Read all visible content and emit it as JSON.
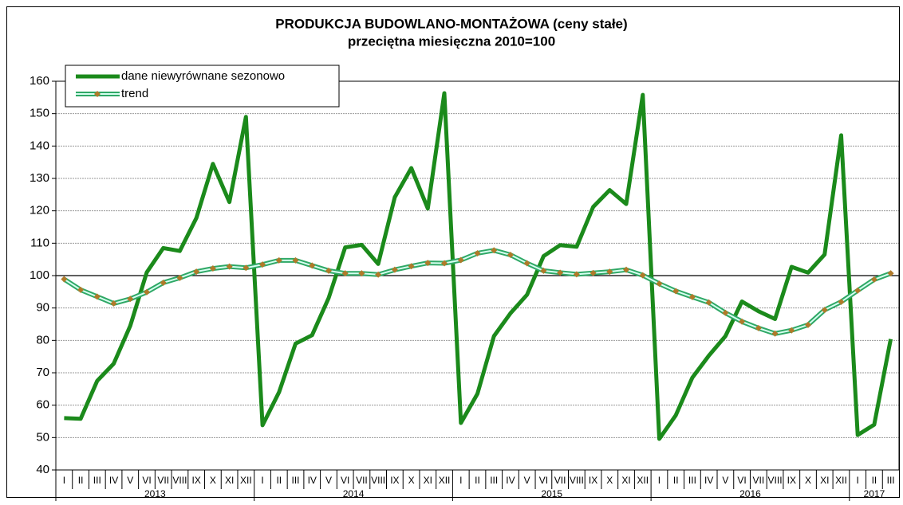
{
  "chart_data": {
    "type": "line",
    "title": "PRODUKCJA BUDOWLANO-MONTAŻOWA (ceny stałe)",
    "subtitle": "przeciętna miesięczna 2010=100",
    "categories": [
      "I",
      "II",
      "III",
      "IV",
      "V",
      "VI",
      "VII",
      "VIII",
      "IX",
      "X",
      "XI",
      "XII",
      "I",
      "II",
      "III",
      "IV",
      "V",
      "VI",
      "VII",
      "VIII",
      "IX",
      "X",
      "XI",
      "XII",
      "I",
      "II",
      "III",
      "IV",
      "V",
      "VI",
      "VII",
      "VIII",
      "IX",
      "X",
      "XI",
      "XII",
      "I",
      "II",
      "III",
      "IV",
      "V",
      "VI",
      "VII",
      "VIII",
      "IX",
      "X",
      "XI",
      "XII",
      "I",
      "II",
      "III"
    ],
    "category_years": [
      "2013",
      "2013",
      "2013",
      "2013",
      "2013",
      "2013",
      "2013",
      "2013",
      "2013",
      "2013",
      "2013",
      "2013",
      "2014",
      "2014",
      "2014",
      "2014",
      "2014",
      "2014",
      "2014",
      "2014",
      "2014",
      "2014",
      "2014",
      "2014",
      "2015",
      "2015",
      "2015",
      "2015",
      "2015",
      "2015",
      "2015",
      "2015",
      "2015",
      "2015",
      "2015",
      "2015",
      "2016",
      "2016",
      "2016",
      "2016",
      "2016",
      "2016",
      "2016",
      "2016",
      "2016",
      "2016",
      "2016",
      "2016",
      "2017",
      "2017",
      "2017"
    ],
    "series": [
      {
        "name": "dane niewyrównane sezonowo",
        "color": "#1b8a1b",
        "values": [
          56,
          55.8,
          67.5,
          72.8,
          84.5,
          101,
          108.5,
          107.6,
          117.8,
          134.5,
          122.7,
          149,
          53.8,
          64,
          79,
          81.6,
          93.1,
          108.7,
          109.5,
          103.6,
          124.2,
          133.2,
          120.7,
          156.3,
          54.5,
          63.5,
          81.3,
          88.4,
          94.1,
          106,
          109.4,
          108.9,
          121.2,
          126.4,
          122.1,
          155.8,
          49.6,
          56.9,
          68.5,
          75.3,
          81.3,
          92,
          89,
          86.6,
          102.7,
          100.9,
          106.5,
          143.3,
          50.8,
          54,
          80.4
        ]
      },
      {
        "name": "trend",
        "color": "#2fa866",
        "marker_color": "#b07a2a",
        "values": [
          98.9,
          95.6,
          93.5,
          91.4,
          92.8,
          94.9,
          97.8,
          99.3,
          101.2,
          102.2,
          102.8,
          102.4,
          103.4,
          104.7,
          104.7,
          103.1,
          101.5,
          100.7,
          100.7,
          100.3,
          101.8,
          102.9,
          103.9,
          103.8,
          104.8,
          106.9,
          107.8,
          106.4,
          103.8,
          101.5,
          100.9,
          100.4,
          100.8,
          101.2,
          101.8,
          100.1,
          97.5,
          95.2,
          93.4,
          91.7,
          88.5,
          85.8,
          83.8,
          82.1,
          83.1,
          84.8,
          89.4,
          91.9,
          95.4,
          98.8,
          100.7
        ]
      }
    ],
    "ylim": [
      40,
      160
    ],
    "yticks": [
      40,
      50,
      60,
      70,
      80,
      90,
      100,
      110,
      120,
      130,
      140,
      150,
      160
    ],
    "grid": true,
    "reference_line": 100,
    "legend": "top-left"
  }
}
